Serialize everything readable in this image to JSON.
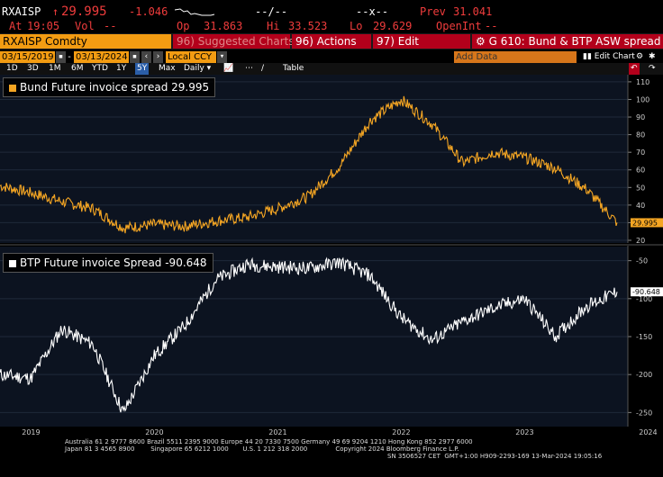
{
  "quote": {
    "ticker": "RXAISP",
    "price": "29.995",
    "change": "-1.046",
    "dashes1": "--/--",
    "dashes2": "--x--",
    "prev_label": "Prev",
    "prev": "31.041",
    "at_label": "At",
    "at": "19:05",
    "vol_label": "Vol",
    "vol": "--",
    "op_label": "Op",
    "op": "31.863",
    "hi_label": "Hi",
    "hi": "33.523",
    "lo_label": "Lo",
    "lo": "29.629",
    "oi_label": "OpenInt",
    "oi": "--"
  },
  "toolbar": {
    "security": "RXAISP Comdty",
    "suggested": "96) Suggested Charts",
    "actions": "96) Actions",
    "edit": "97) Edit",
    "title": "G 610: Bund & BTP ASW spread"
  },
  "range": {
    "start": "03/15/2019",
    "end": "03/13/2024",
    "currency": "Local CCY",
    "add_data": "Add Data",
    "edit_chart": "Edit Chart"
  },
  "periods": [
    "1D",
    "3D",
    "1M",
    "6M",
    "YTD",
    "1Y",
    "5Y",
    "Max",
    "Daily"
  ],
  "selected_period": "5Y",
  "table_label": "Table",
  "colors": {
    "bund": "#f5a623",
    "btp": "#ffffff",
    "accent_red": "#b3001b",
    "accent_orange": "#f39c12"
  },
  "chart_data": [
    {
      "type": "line",
      "series": [
        {
          "name": "Bund Future invoice spread",
          "last": 29.995
        }
      ],
      "legend_text": "Bund Future invoice spread 29.995",
      "last_label": "29.995",
      "yticks": [
        20,
        30,
        40,
        50,
        60,
        70,
        80,
        90,
        100,
        110
      ],
      "ylim": [
        20,
        112
      ],
      "x": [
        "2019-03",
        "2019-06",
        "2019-09",
        "2019-12",
        "2020-03",
        "2020-06",
        "2020-09",
        "2020-12",
        "2021-03",
        "2021-06",
        "2021-09",
        "2021-12",
        "2022-03",
        "2022-06",
        "2022-09",
        "2022-12",
        "2023-03",
        "2023-06",
        "2023-09",
        "2023-12",
        "2024-03"
      ],
      "values": [
        51,
        47,
        42,
        38,
        27,
        29,
        28,
        31,
        33,
        38,
        45,
        62,
        88,
        100,
        86,
        64,
        70,
        67,
        61,
        49,
        30
      ]
    },
    {
      "type": "line",
      "series": [
        {
          "name": "BTP Future invoice Spread",
          "last": -90.648
        }
      ],
      "legend_text": "BTP Future invoice Spread -90.648",
      "last_label": "-90.648",
      "yticks": [
        -50,
        -100,
        -150,
        -200,
        -250
      ],
      "ylim": [
        -265,
        -35
      ],
      "x": [
        "2019-03",
        "2019-06",
        "2019-09",
        "2019-12",
        "2020-03",
        "2020-06",
        "2020-09",
        "2020-12",
        "2021-03",
        "2021-06",
        "2021-09",
        "2021-12",
        "2022-03",
        "2022-06",
        "2022-09",
        "2022-12",
        "2023-03",
        "2023-06",
        "2023-09",
        "2023-12",
        "2024-03"
      ],
      "values": [
        -200,
        -205,
        -140,
        -160,
        -250,
        -175,
        -135,
        -75,
        -55,
        -58,
        -60,
        -52,
        -70,
        -125,
        -155,
        -130,
        -112,
        -100,
        -150,
        -110,
        -91
      ]
    }
  ],
  "xaxis": [
    "2019",
    "2020",
    "2021",
    "2022",
    "2023",
    "2024"
  ],
  "footer": {
    "line1": "Australia 61 2 9777 8600 Brazil 5511 2395 9000 Europe 44 20 7330 7500 Germany 49 69 9204 1210 Hong Kong 852 2977 6000",
    "line2": "Japan 81 3 4565 8900        Singapore 65 6212 1000       U.S. 1 212 318 2000              Copyright 2024 Bloomberg Finance L.P.",
    "line3": "SN 3506527 CET  GMT+1:00 H909-2293-169 13-Mar-2024 19:05:16"
  }
}
